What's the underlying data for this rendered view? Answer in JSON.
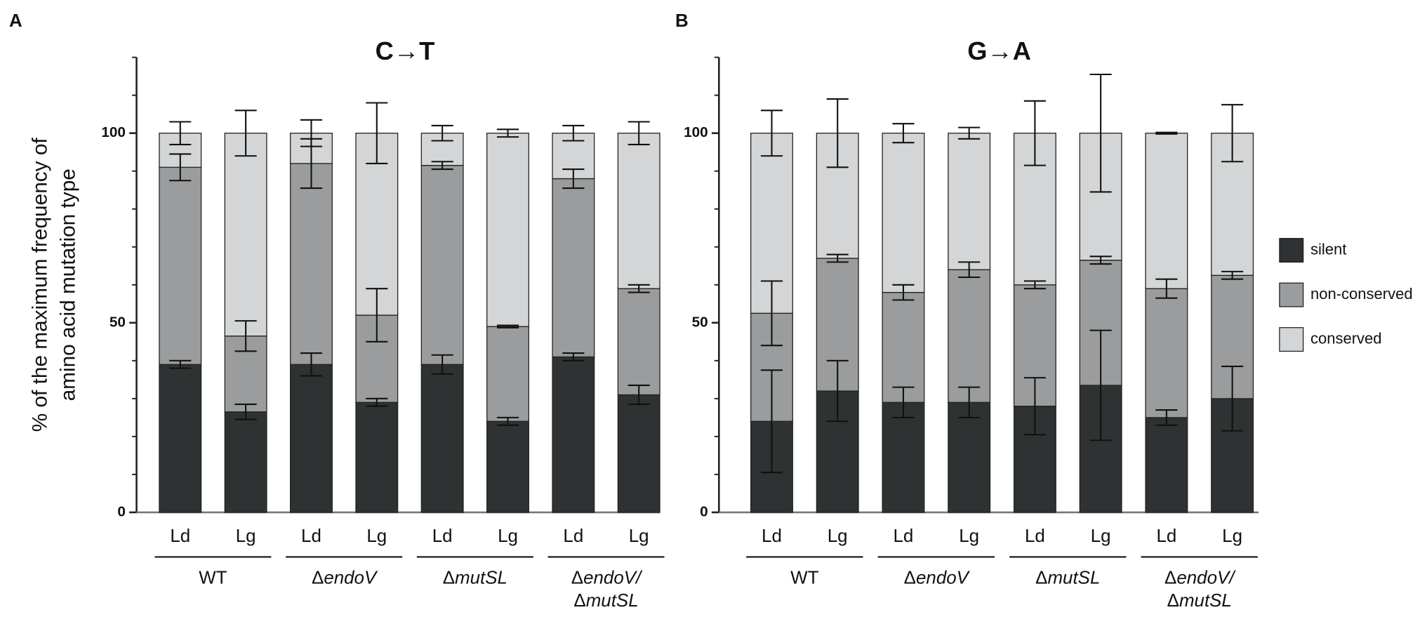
{
  "chart_data": [
    {
      "type": "stacked_bar",
      "panel": "A",
      "title": "C→T",
      "ylabel": [
        "% of the maximum frequency of",
        "amino acid mutation type"
      ],
      "categories": [
        "Ld",
        "Lg",
        "Ld",
        "Lg",
        "Ld",
        "Lg",
        "Ld",
        "Lg"
      ],
      "groups": [
        [
          "WT"
        ],
        [
          "ΔendoV"
        ],
        [
          "ΔmutSL"
        ],
        [
          "ΔendoV/",
          "ΔmutSL"
        ]
      ],
      "ylim": [
        0,
        120
      ],
      "yticks": [
        0,
        50,
        100
      ],
      "yminor": [
        10,
        20,
        30,
        40,
        60,
        70,
        80,
        90,
        110,
        120
      ],
      "series": [
        {
          "name": "silent",
          "color": "#2f3232",
          "values": [
            39,
            26.5,
            39,
            29,
            39,
            24,
            41,
            31
          ],
          "errors": [
            1,
            2,
            3,
            1,
            2.5,
            1,
            1,
            2.5
          ]
        },
        {
          "name": "non-conserved",
          "color": "#9a9c9d",
          "values": [
            52,
            20,
            53,
            23,
            52.5,
            25,
            47,
            28
          ],
          "errors": [
            3.5,
            4,
            6.5,
            7,
            1,
            0.3,
            2.5,
            1
          ]
        },
        {
          "name": "conserved",
          "color": "#d3d5d6",
          "values": [
            9,
            53.5,
            8,
            48,
            8.5,
            51,
            12,
            41
          ],
          "errors": [
            3,
            6,
            3.5,
            8,
            2,
            1,
            2,
            3
          ]
        }
      ]
    },
    {
      "type": "stacked_bar",
      "panel": "B",
      "title": "G→A",
      "categories": [
        "Ld",
        "Lg",
        "Ld",
        "Lg",
        "Ld",
        "Lg",
        "Ld",
        "Lg"
      ],
      "groups": [
        [
          "WT"
        ],
        [
          "ΔendoV"
        ],
        [
          "ΔmutSL"
        ],
        [
          "ΔendoV/",
          "ΔmutSL"
        ]
      ],
      "ylim": [
        0,
        120
      ],
      "yticks": [
        0,
        50,
        100
      ],
      "yminor": [
        10,
        20,
        30,
        40,
        60,
        70,
        80,
        90,
        110,
        120
      ],
      "legend": "right",
      "series": [
        {
          "name": "silent",
          "color": "#2f3232",
          "values": [
            24,
            32,
            29,
            29,
            28,
            33.5,
            25,
            30
          ],
          "errors": [
            13.5,
            8,
            4,
            4,
            7.5,
            14.5,
            2,
            8.5
          ]
        },
        {
          "name": "non-conserved",
          "color": "#9a9c9d",
          "values": [
            28.5,
            35,
            29,
            35,
            32,
            33,
            34,
            32.5
          ],
          "errors": [
            8.5,
            1,
            2,
            2,
            1,
            1,
            2.5,
            1
          ]
        },
        {
          "name": "conserved",
          "color": "#d3d5d6",
          "values": [
            47.5,
            33,
            42,
            36,
            40,
            33.5,
            41,
            37.5
          ],
          "errors": [
            6,
            9,
            2.5,
            1.5,
            8.5,
            15.5,
            0.2,
            7.5
          ]
        }
      ]
    }
  ]
}
